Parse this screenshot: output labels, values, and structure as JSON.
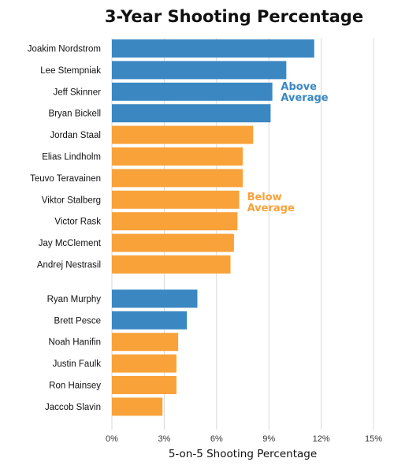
{
  "chart_data": {
    "type": "bar",
    "orientation": "horizontal",
    "title": "3-Year Shooting Percentage",
    "xlabel": "5-on-5 Shooting Percentage",
    "ylabel": "",
    "xlim": [
      0,
      15
    ],
    "x_ticks": [
      "0%",
      "3%",
      "6%",
      "9%",
      "12%",
      "15%"
    ],
    "grid": true,
    "colors": {
      "above": "#3a87c2",
      "below": "#f9a23a",
      "grid": "#d9d9d9"
    },
    "groups": [
      {
        "players": [
          {
            "name": "Joakim Nordstrom",
            "value": 11.6,
            "class": "above"
          },
          {
            "name": "Lee Stempniak",
            "value": 10.0,
            "class": "above"
          },
          {
            "name": "Jeff Skinner",
            "value": 9.2,
            "class": "above"
          },
          {
            "name": "Bryan Bickell",
            "value": 9.1,
            "class": "above"
          },
          {
            "name": "Jordan Staal",
            "value": 8.1,
            "class": "below"
          },
          {
            "name": "Elias Lindholm",
            "value": 7.5,
            "class": "below"
          },
          {
            "name": "Teuvo Teravainen",
            "value": 7.5,
            "class": "below"
          },
          {
            "name": "Viktor Stalberg",
            "value": 7.3,
            "class": "below"
          },
          {
            "name": "Victor Rask",
            "value": 7.2,
            "class": "below"
          },
          {
            "name": "Jay McClement",
            "value": 7.0,
            "class": "below"
          },
          {
            "name": "Andrej Nestrasil",
            "value": 6.8,
            "class": "below"
          }
        ]
      },
      {
        "players": [
          {
            "name": "Ryan Murphy",
            "value": 4.9,
            "class": "above"
          },
          {
            "name": "Brett Pesce",
            "value": 4.3,
            "class": "above"
          },
          {
            "name": "Noah Hanifin",
            "value": 3.8,
            "class": "below"
          },
          {
            "name": "Justin Faulk",
            "value": 3.7,
            "class": "below"
          },
          {
            "name": "Ron Hainsey",
            "value": 3.7,
            "class": "below"
          },
          {
            "name": "Jaccob Slavin",
            "value": 2.9,
            "class": "below"
          }
        ]
      }
    ],
    "annotations": [
      {
        "class": "above",
        "lines": [
          "Above",
          "Average"
        ]
      },
      {
        "class": "below",
        "lines": [
          "Below",
          "Average"
        ]
      }
    ]
  }
}
